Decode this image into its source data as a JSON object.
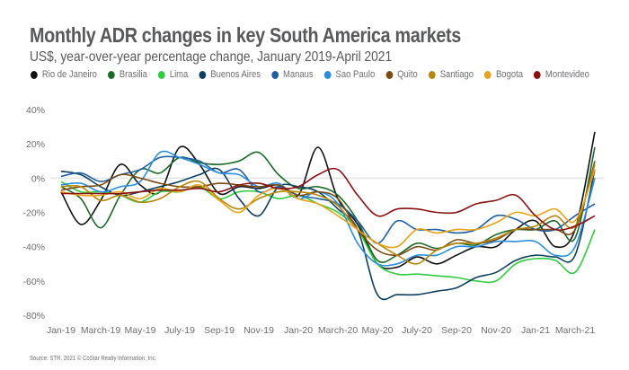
{
  "header": {
    "title": "Monthly ADR changes in key South America markets",
    "subtitle": "US$, year-over-year percentage change, January 2019-April 2021"
  },
  "footer": {
    "source": "Source: STR. 2021 © CoStar Realty Information, Inc."
  },
  "chart_data": {
    "type": "line",
    "title": "Monthly ADR changes in key South America markets",
    "subtitle": "US$, year-over-year percentage change, January 2019-April 2021",
    "xlabel": "",
    "ylabel": "",
    "ylim": [
      -80,
      40
    ],
    "yticks": [
      40,
      20,
      0,
      -20,
      -40,
      -60,
      -80
    ],
    "ytick_labels": [
      "40%",
      "20%",
      "0%",
      "-20%",
      "-40%",
      "-60%",
      "-80%"
    ],
    "x": [
      "Jan-19",
      "Feb-19",
      "Mar-19",
      "Apr-19",
      "May-19",
      "Jun-19",
      "Jul-19",
      "Aug-19",
      "Sep-19",
      "Oct-19",
      "Nov-19",
      "Dec-19",
      "Jan-20",
      "Feb-20",
      "Mar-20",
      "Apr-20",
      "May-20",
      "Jun-20",
      "Jul-20",
      "Aug-20",
      "Sep-20",
      "Oct-20",
      "Nov-20",
      "Dec-20",
      "Jan-21",
      "Feb-21",
      "Mar-21",
      "Apr-21"
    ],
    "xtick_labels": [
      "Jan-19",
      "March-19",
      "May-19",
      "July-19",
      "Sep-19",
      "Nov-19",
      "Jan-20",
      "March-20",
      "May-20",
      "July-20",
      "Sep-20",
      "Nov-20",
      "Jan-21",
      "March-21"
    ],
    "grid": false,
    "zero_line": true,
    "legend_position": "top",
    "series": [
      {
        "name": "Rio de Janeiro",
        "color": "#111111",
        "values": [
          -8,
          -27,
          -13,
          8,
          -4,
          -8,
          18,
          8,
          -9,
          -5,
          -6,
          -4,
          -10,
          18,
          -12,
          -27,
          -50,
          -52,
          -46,
          -50,
          -45,
          -40,
          -40,
          -30,
          -25,
          -40,
          -30,
          27
        ]
      },
      {
        "name": "Brasilia",
        "color": "#1b6b2a",
        "values": [
          -5,
          -12,
          -29,
          -10,
          5,
          3,
          12,
          9,
          8,
          10,
          15,
          2,
          -6,
          -5,
          -10,
          -25,
          -48,
          -45,
          -38,
          -41,
          -38,
          -39,
          -33,
          -30,
          -30,
          -25,
          -35,
          18
        ]
      },
      {
        "name": "Lima",
        "color": "#2ecc40",
        "values": [
          -2,
          -8,
          -8,
          -10,
          -14,
          -8,
          -8,
          -5,
          -12,
          -8,
          -8,
          -12,
          -10,
          -15,
          -20,
          -30,
          -50,
          -56,
          -56,
          -57,
          -58,
          -60,
          -60,
          -50,
          -47,
          -48,
          -55,
          -30
        ]
      },
      {
        "name": "Buenos Aires",
        "color": "#0d3f5e",
        "values": [
          4,
          2,
          -5,
          -10,
          -8,
          -5,
          -2,
          2,
          5,
          -12,
          -22,
          -5,
          -5,
          -8,
          -18,
          -30,
          -68,
          -68,
          -68,
          -66,
          -64,
          -58,
          -55,
          -48,
          -45,
          -46,
          -45,
          5
        ]
      },
      {
        "name": "Manaus",
        "color": "#1f5fa5",
        "values": [
          1,
          3,
          -2,
          2,
          5,
          12,
          12,
          10,
          3,
          5,
          -8,
          -5,
          -10,
          -12,
          -15,
          -25,
          -38,
          -25,
          -30,
          -30,
          -32,
          -30,
          -22,
          -24,
          -30,
          -30,
          -22,
          -15
        ]
      },
      {
        "name": "Sao Paulo",
        "color": "#2b8fe0",
        "values": [
          -4,
          -3,
          -8,
          -5,
          -2,
          15,
          12,
          8,
          3,
          2,
          -5,
          -3,
          -12,
          -8,
          -15,
          -38,
          -50,
          -50,
          -45,
          -45,
          -40,
          -40,
          -37,
          -37,
          -37,
          -45,
          -40,
          0
        ]
      },
      {
        "name": "Quito",
        "color": "#7a4a12",
        "values": [
          -7,
          -5,
          -4,
          2,
          0,
          -3,
          -5,
          -5,
          -3,
          -4,
          -5,
          -4,
          -10,
          -8,
          -12,
          -30,
          -42,
          -45,
          -40,
          -42,
          -36,
          -38,
          -36,
          -30,
          -30,
          -30,
          -30,
          10
        ]
      },
      {
        "name": "Santiago",
        "color": "#b8860b",
        "values": [
          -5,
          -5,
          -13,
          -10,
          -14,
          -12,
          -5,
          -2,
          -12,
          -18,
          -12,
          -8,
          -8,
          -10,
          -16,
          -30,
          -38,
          -45,
          -50,
          -42,
          -38,
          -38,
          -35,
          -30,
          -28,
          -22,
          -28,
          8
        ]
      },
      {
        "name": "Bogota",
        "color": "#e8a317",
        "values": [
          -8,
          -10,
          -10,
          -8,
          -12,
          -6,
          -8,
          -4,
          -13,
          -20,
          -10,
          -6,
          -12,
          -15,
          -22,
          -30,
          -38,
          -40,
          -30,
          -32,
          -30,
          -30,
          -26,
          -20,
          -22,
          -18,
          -25,
          5
        ]
      },
      {
        "name": "Montevideo",
        "color": "#8b1010",
        "values": [
          -9,
          -9,
          -9,
          -9,
          -8,
          -7,
          -7,
          -6,
          -8,
          -4,
          -3,
          -6,
          -5,
          2,
          5,
          -10,
          -22,
          -18,
          -18,
          -20,
          -20,
          -15,
          -13,
          -10,
          -22,
          -30,
          -28,
          -22
        ]
      }
    ]
  }
}
